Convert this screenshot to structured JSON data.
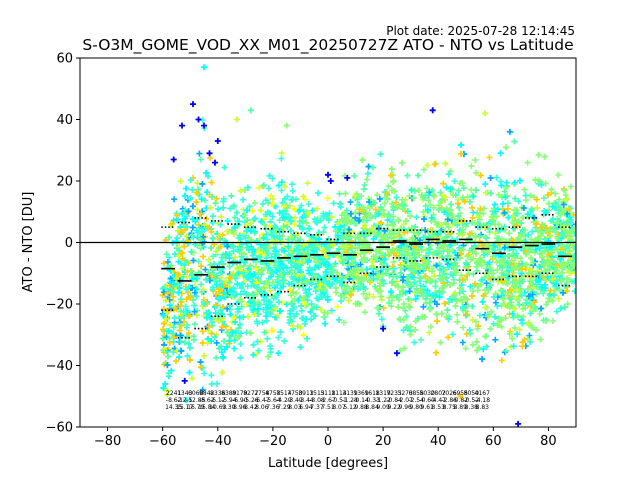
{
  "header": {
    "plot_date": "Plot date: 2025-07-28 12:14:45",
    "title": "S-O3M_GOME_VOD_XX_M01_20250727Z ATO - NTO vs Latitude"
  },
  "chart_data": {
    "type": "scatter",
    "xlabel": "Latitude [degrees]",
    "ylabel": "ATO - NTO [DU]",
    "xlim": [
      -90,
      90
    ],
    "ylim": [
      -60,
      60
    ],
    "xticks": [
      -80,
      -60,
      -40,
      -20,
      0,
      20,
      40,
      60,
      80
    ],
    "yticks": [
      -60,
      -40,
      -20,
      0,
      20,
      40,
      60
    ],
    "xtick_labels": [
      "−80",
      "−60",
      "−40",
      "−20",
      "0",
      "20",
      "40",
      "60",
      "80"
    ],
    "ytick_labels": [
      "−60",
      "−40",
      "−20",
      "0",
      "20",
      "40",
      "60"
    ],
    "zero_line": 0,
    "grid": false,
    "marker": "+",
    "point_colors": [
      "#0000ff",
      "#00aaff",
      "#00ffff",
      "#33ffdd",
      "#55ffaa",
      "#88ff77",
      "#ccff33",
      "#ffff00",
      "#ffcc00"
    ],
    "scatter_envelope": [
      {
        "lat": -58,
        "lo": -55,
        "hi": 12
      },
      {
        "lat": -54,
        "lo": -52,
        "hi": 30
      },
      {
        "lat": -50,
        "lo": -58,
        "hi": 45
      },
      {
        "lat": -46,
        "lo": -58,
        "hi": 58
      },
      {
        "lat": -42,
        "lo": -58,
        "hi": 40
      },
      {
        "lat": -38,
        "lo": -52,
        "hi": 26
      },
      {
        "lat": -34,
        "lo": -48,
        "hi": 25
      },
      {
        "lat": -30,
        "lo": -42,
        "hi": 27
      },
      {
        "lat": -26,
        "lo": -40,
        "hi": 28
      },
      {
        "lat": -22,
        "lo": -42,
        "hi": 30
      },
      {
        "lat": -18,
        "lo": -40,
        "hi": 32
      },
      {
        "lat": -14,
        "lo": -38,
        "hi": 33
      },
      {
        "lat": -10,
        "lo": -35,
        "hi": 28
      },
      {
        "lat": -6,
        "lo": -32,
        "hi": 24
      },
      {
        "lat": -2,
        "lo": -33,
        "hi": 23
      },
      {
        "lat": 2,
        "lo": -30,
        "hi": 25
      },
      {
        "lat": 6,
        "lo": -29,
        "hi": 28
      },
      {
        "lat": 10,
        "lo": -28,
        "hi": 26
      },
      {
        "lat": 14,
        "lo": -28,
        "hi": 30
      },
      {
        "lat": 18,
        "lo": -30,
        "hi": 33
      },
      {
        "lat": 22,
        "lo": -32,
        "hi": 35
      },
      {
        "lat": 26,
        "lo": -38,
        "hi": 33
      },
      {
        "lat": 30,
        "lo": -34,
        "hi": 32
      },
      {
        "lat": 34,
        "lo": -35,
        "hi": 33
      },
      {
        "lat": 38,
        "lo": -38,
        "hi": 35
      },
      {
        "lat": 42,
        "lo": -36,
        "hi": 34
      },
      {
        "lat": 46,
        "lo": -38,
        "hi": 36
      },
      {
        "lat": 50,
        "lo": -42,
        "hi": 38
      },
      {
        "lat": 54,
        "lo": -44,
        "hi": 40
      },
      {
        "lat": 58,
        "lo": -42,
        "hi": 38
      },
      {
        "lat": 62,
        "lo": -40,
        "hi": 36
      },
      {
        "lat": 66,
        "lo": -44,
        "hi": 36
      },
      {
        "lat": 70,
        "lo": -42,
        "hi": 34
      },
      {
        "lat": 74,
        "lo": -40,
        "hi": 32
      },
      {
        "lat": 78,
        "lo": -36,
        "hi": 34
      },
      {
        "lat": 82,
        "lo": -30,
        "hi": 32
      },
      {
        "lat": 86,
        "lo": -26,
        "hi": 28
      },
      {
        "lat": 89,
        "lo": -22,
        "hi": 22
      }
    ],
    "scatter_outliers": [
      {
        "lat": -47,
        "value": 40,
        "color": "#0000ff"
      },
      {
        "lat": -45,
        "value": 38,
        "color": "#0000ff"
      },
      {
        "lat": -43,
        "value": 29,
        "color": "#0000ff"
      },
      {
        "lat": -41,
        "value": 26,
        "color": "#0000ff"
      },
      {
        "lat": -49,
        "value": 45,
        "color": "#0000ff"
      },
      {
        "lat": -53,
        "value": 38,
        "color": "#0000ff"
      },
      {
        "lat": -56,
        "value": 27,
        "color": "#0000ff"
      },
      {
        "lat": -40,
        "value": 33,
        "color": "#0000ff"
      },
      {
        "lat": 0,
        "value": 22,
        "color": "#0000ff"
      },
      {
        "lat": 1,
        "value": 20,
        "color": "#0000ff"
      },
      {
        "lat": 7,
        "value": 21,
        "color": "#0000ff"
      },
      {
        "lat": 38,
        "value": 43,
        "color": "#0000ff"
      },
      {
        "lat": 66,
        "value": 36,
        "color": "#00aaff"
      },
      {
        "lat": 20,
        "value": -28,
        "color": "#0000ff"
      },
      {
        "lat": 25,
        "value": -36,
        "color": "#0000ff"
      },
      {
        "lat": 69,
        "value": -59,
        "color": "#0000ff"
      },
      {
        "lat": -52,
        "value": -45,
        "color": "#0000ff"
      },
      {
        "lat": -28,
        "value": 43,
        "color": "#55ffaa"
      },
      {
        "lat": -15,
        "value": 38,
        "color": "#88ff77"
      },
      {
        "lat": -18,
        "value": -36,
        "color": "#00ffff"
      },
      {
        "lat": -10,
        "value": -34,
        "color": "#33ffdd"
      },
      {
        "lat": 57,
        "value": 42,
        "color": "#ccff33"
      },
      {
        "lat": 48,
        "value": -50,
        "color": "#ffcc00"
      },
      {
        "lat": -45,
        "value": 57,
        "color": "#00ffff"
      },
      {
        "lat": -33,
        "value": 40,
        "color": "#ccff33"
      }
    ],
    "bin_median": [
      {
        "lat": -58,
        "value": -8.5
      },
      {
        "lat": -52,
        "value": -12.5
      },
      {
        "lat": -46,
        "value": -10.5
      },
      {
        "lat": -40,
        "value": -8
      },
      {
        "lat": -34,
        "value": -6.5
      },
      {
        "lat": -28,
        "value": -5.5
      },
      {
        "lat": -22,
        "value": -6
      },
      {
        "lat": -16,
        "value": -5
      },
      {
        "lat": -10,
        "value": -4.5
      },
      {
        "lat": -4,
        "value": -4
      },
      {
        "lat": 2,
        "value": -3.5
      },
      {
        "lat": 8,
        "value": -4
      },
      {
        "lat": 14,
        "value": -2.5
      },
      {
        "lat": 20,
        "value": -1.5
      },
      {
        "lat": 26,
        "value": 0.5
      },
      {
        "lat": 32,
        "value": -0.5
      },
      {
        "lat": 38,
        "value": 1
      },
      {
        "lat": 44,
        "value": 0.5
      },
      {
        "lat": 50,
        "value": 1
      },
      {
        "lat": 56,
        "value": -2
      },
      {
        "lat": 62,
        "value": -3.5
      },
      {
        "lat": 68,
        "value": -1.5
      },
      {
        "lat": 74,
        "value": -1
      },
      {
        "lat": 80,
        "value": -0.5
      },
      {
        "lat": 86,
        "value": -4.5
      }
    ],
    "bin_upper": [
      {
        "lat": -58,
        "value": 5
      },
      {
        "lat": -52,
        "value": 6.5
      },
      {
        "lat": -46,
        "value": 8
      },
      {
        "lat": -40,
        "value": 7
      },
      {
        "lat": -34,
        "value": 6
      },
      {
        "lat": -28,
        "value": 5
      },
      {
        "lat": -22,
        "value": 4.5
      },
      {
        "lat": -16,
        "value": 3.5
      },
      {
        "lat": -10,
        "value": 3
      },
      {
        "lat": -4,
        "value": 2.5
      },
      {
        "lat": 2,
        "value": 1
      },
      {
        "lat": 8,
        "value": 3
      },
      {
        "lat": 14,
        "value": 3
      },
      {
        "lat": 20,
        "value": 4.5
      },
      {
        "lat": 26,
        "value": 4
      },
      {
        "lat": 32,
        "value": 4
      },
      {
        "lat": 38,
        "value": 3.5
      },
      {
        "lat": 44,
        "value": 3.5
      },
      {
        "lat": 50,
        "value": 7
      },
      {
        "lat": 56,
        "value": 5
      },
      {
        "lat": 62,
        "value": 4.5
      },
      {
        "lat": 68,
        "value": 5
      },
      {
        "lat": 74,
        "value": 8
      },
      {
        "lat": 80,
        "value": 9
      },
      {
        "lat": 86,
        "value": 5
      }
    ],
    "bin_lower": [
      {
        "lat": -58,
        "value": -22
      },
      {
        "lat": -52,
        "value": -31
      },
      {
        "lat": -46,
        "value": -28
      },
      {
        "lat": -40,
        "value": -24
      },
      {
        "lat": -34,
        "value": -20
      },
      {
        "lat": -28,
        "value": -18
      },
      {
        "lat": -22,
        "value": -17
      },
      {
        "lat": -16,
        "value": -16
      },
      {
        "lat": -10,
        "value": -14
      },
      {
        "lat": -4,
        "value": -12
      },
      {
        "lat": 2,
        "value": -11
      },
      {
        "lat": 8,
        "value": -13
      },
      {
        "lat": 14,
        "value": -10
      },
      {
        "lat": 20,
        "value": -8
      },
      {
        "lat": 26,
        "value": -5
      },
      {
        "lat": 32,
        "value": -6
      },
      {
        "lat": 38,
        "value": -5
      },
      {
        "lat": 44,
        "value": -5.5
      },
      {
        "lat": 50,
        "value": -9
      },
      {
        "lat": 56,
        "value": -10
      },
      {
        "lat": 62,
        "value": -12
      },
      {
        "lat": 68,
        "value": -11
      },
      {
        "lat": 74,
        "value": -11
      },
      {
        "lat": 80,
        "value": -10
      },
      {
        "lat": 86,
        "value": -14
      }
    ],
    "stats_labels": [
      {
        "lat": -56,
        "row1": "2241",
        "row2": "-8.62",
        "row3": "14.35"
      },
      {
        "lat": -52,
        "row1": "1343",
        "row2": "-12.5",
        "row3": "15.17"
      },
      {
        "lat": -48,
        "row1": "6068",
        "row2": "-12.85",
        "row3": "16.79"
      },
      {
        "lat": -44,
        "row1": "9842",
        "row2": "-8.62",
        "row3": "15.84"
      },
      {
        "lat": -40,
        "row1": "8336",
        "row2": "-6.12",
        "row3": "10.63"
      },
      {
        "lat": -36,
        "row1": "8389",
        "row2": "-5.94",
        "row3": "9.30"
      },
      {
        "lat": -32,
        "row1": "8179",
        "row2": "-6.90",
        "row3": "8.96"
      },
      {
        "lat": -28,
        "row1": "8277",
        "row2": "-5.26",
        "row3": "8.42"
      },
      {
        "lat": -24,
        "row1": "2758",
        "row2": "-6.47",
        "row3": "8.06"
      },
      {
        "lat": -20,
        "row1": "4758",
        "row2": "-5.64",
        "row3": "7.36"
      },
      {
        "lat": -16,
        "row1": "7514",
        "row2": "-4.29",
        "row3": "7.29"
      },
      {
        "lat": -12,
        "row1": "7750",
        "row2": "-3.49",
        "row3": "8.03"
      },
      {
        "lat": -8,
        "row1": "3913",
        "row2": "-3.44",
        "row3": "6.94"
      },
      {
        "lat": -4,
        "row1": "1513",
        "row2": "-3.08",
        "row3": "7.37"
      },
      {
        "lat": 0,
        "row1": "5118",
        "row2": "-2.67",
        "row3": "7.51"
      },
      {
        "lat": 4,
        "row1": "1114",
        "row2": "-0.51",
        "row3": "8.07"
      },
      {
        "lat": 8,
        "row1": "3139",
        "row2": "-1.28",
        "row3": "5.12"
      },
      {
        "lat": 12,
        "row1": "1369",
        "row2": "-0.14",
        "row3": "9.88"
      },
      {
        "lat": 16,
        "row1": "1618",
        "row2": "-0.33",
        "row3": "8.84"
      },
      {
        "lat": 20,
        "row1": "1319",
        "row2": "-1.22",
        "row3": "9.09"
      },
      {
        "lat": 24,
        "row1": "7235",
        "row2": "-0.84",
        "row3": "9.22"
      },
      {
        "lat": 28,
        "row1": "3273",
        "row2": "-2.07",
        "row3": "9.96"
      },
      {
        "lat": 32,
        "row1": "6858",
        "row2": "-2.54",
        "row3": "9.80"
      },
      {
        "lat": 36,
        "row1": "5030",
        "row2": "-0.60",
        "row3": "9.61"
      },
      {
        "lat": 40,
        "row1": "2802",
        "row2": "-4.47",
        "row3": "8.53"
      },
      {
        "lat": 44,
        "row1": "7026",
        "row2": "-2.86",
        "row3": "8.75"
      },
      {
        "lat": 48,
        "row1": "6955",
        "row2": "-0.82",
        "row3": "8.89"
      },
      {
        "lat": 52,
        "row1": "8050",
        "row2": "-0.52",
        "row3": "8.38"
      },
      {
        "lat": 56,
        "row1": "4167",
        "row2": "-4.18",
        "row3": "8.83"
      }
    ]
  }
}
